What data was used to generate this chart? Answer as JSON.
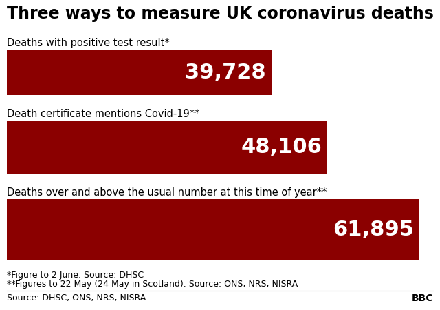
{
  "title": "Three ways to measure UK coronavirus deaths",
  "bars": [
    {
      "label": "Deaths with positive test result*",
      "value": 39728,
      "display": "39,728",
      "proportion": 0.6415
    },
    {
      "label": "Death certificate mentions Covid-19**",
      "value": 48106,
      "display": "48,106",
      "proportion": 0.7768
    },
    {
      "label": "Deaths over and above the usual number at this time of year**",
      "value": 61895,
      "display": "61,895",
      "proportion": 1.0
    }
  ],
  "bar_color": "#8B0000",
  "text_color_white": "#FFFFFF",
  "text_color_black": "#000000",
  "background_color": "#FFFFFF",
  "footnote1": "*Figure to 2 June. Source: DHSC",
  "footnote2": "**Figures to 22 May (24 May in Scotland). Source: ONS, NRS, NISRA",
  "source": "Source: DHSC, ONS, NRS, NISRA",
  "bbc_label": "BBC",
  "title_fontsize": 17,
  "label_fontsize": 10.5,
  "value_fontsize": 22,
  "footnote_fontsize": 9,
  "source_fontsize": 9
}
